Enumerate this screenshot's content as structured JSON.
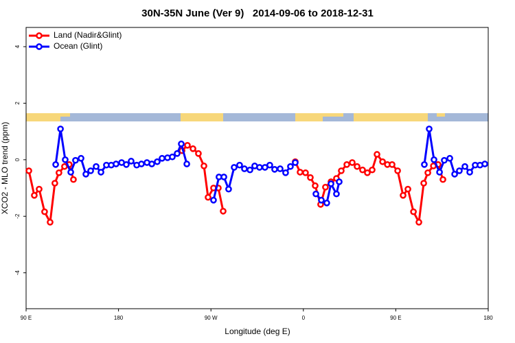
{
  "chart_data": {
    "type": "line",
    "title": "30N-35N June (Ver 9)   2014-09-06 to 2018-12-31",
    "x_label": "Longitude (deg E)",
    "y_label": "XCO2 - MLO trend (ppm)",
    "xlim": [
      90,
      540
    ],
    "ylim": [
      -5.27,
      4.68
    ],
    "xticks": [
      {
        "value": 90,
        "label": "90 E"
      },
      {
        "value": 180,
        "label": "180"
      },
      {
        "value": 270,
        "label": "90 W"
      },
      {
        "value": 360,
        "label": "0"
      },
      {
        "value": 450,
        "label": "90 E"
      },
      {
        "value": 540,
        "label": "180"
      }
    ],
    "yticks": [
      -4,
      -2,
      0,
      2,
      4
    ],
    "legend": "top-left",
    "series": [
      {
        "name": "Land (Nadir&Glint)",
        "color": "#ff0000",
        "x": [
          92.7,
          98,
          102.7,
          108,
          113.4,
          118,
          122,
          127.4,
          132,
          136.1,
          null,
          241.8,
          247.1,
          252.5,
          257.8,
          263.2,
          267.2,
          272.5,
          277.2,
          281.9,
          null,
          352.1,
          356.8,
          362.1,
          366.8,
          371.5,
          376.8,
          381.5,
          386.9,
          392.2,
          396.9,
          402.3,
          407.6,
          412.3,
          417.6,
          422.3,
          427,
          431.7,
          437.1,
          441.8,
          446.4,
          451.8,
          457.1,
          461.8,
          467.2,
          472.5,
          477.2,
          481.2,
          486.6,
          491.2,
          495.9
        ],
        "values": [
          -0.39,
          -1.26,
          -1.04,
          -1.84,
          -2.21,
          -0.83,
          -0.46,
          -0.24,
          -0.17,
          -0.7,
          null,
          0.32,
          0.51,
          0.39,
          0.22,
          -0.22,
          -1.33,
          -1.0,
          -1.0,
          -1.82,
          null,
          -0.07,
          -0.44,
          -0.46,
          -0.63,
          -0.92,
          -1.58,
          -0.97,
          -0.78,
          -0.66,
          -0.39,
          -0.17,
          -0.1,
          -0.24,
          -0.36,
          -0.46,
          -0.36,
          0.19,
          -0.07,
          -0.17,
          -0.17,
          -0.39,
          -1.26,
          -1.04,
          -1.84,
          -2.21,
          -0.83,
          -0.46,
          -0.22,
          -0.17,
          -0.7
        ]
      },
      {
        "name": "Ocean (Glint)",
        "color": "#0000ff",
        "x": [
          118.8,
          123.5,
          128.1,
          133.5,
          138.1,
          143.5,
          148.2,
          152.9,
          158.2,
          162.9,
          168.2,
          172.9,
          177.6,
          183,
          187.6,
          192.3,
          197.7,
          202.3,
          207.7,
          212.4,
          217.7,
          222.4,
          227.7,
          232.4,
          237.1,
          241.1,
          246.5,
          null,
          272.5,
          277.8,
          282.6,
          287.2,
          292.6,
          297.9,
          302.6,
          308,
          312.6,
          317.3,
          322.6,
          327.3,
          332,
          337.4,
          342.7,
          347.4,
          352.1,
          null,
          372.2,
          377.5,
          382.8,
          386.9,
          392.2,
          394.9,
          null,
          477.8,
          482.5,
          487.2,
          492.6,
          497.2,
          502.6,
          507.3,
          511.9,
          517.3,
          522,
          527.3,
          532,
          536.7
        ],
        "values": [
          -0.17,
          1.09,
          0.0,
          -0.44,
          -0.02,
          0.05,
          -0.51,
          -0.39,
          -0.24,
          -0.44,
          -0.19,
          -0.19,
          -0.15,
          -0.1,
          -0.17,
          -0.05,
          -0.19,
          -0.15,
          -0.1,
          -0.15,
          -0.07,
          0.05,
          0.07,
          0.1,
          0.22,
          0.56,
          -0.15,
          null,
          -1.43,
          -0.61,
          -0.61,
          -1.04,
          -0.27,
          -0.19,
          -0.32,
          -0.36,
          -0.22,
          -0.27,
          -0.27,
          -0.19,
          -0.34,
          -0.32,
          -0.46,
          -0.24,
          -0.1,
          null,
          -1.21,
          -1.43,
          -1.53,
          -0.85,
          -1.21,
          -0.78,
          null,
          -0.17,
          1.09,
          0.0,
          -0.44,
          -0.02,
          0.05,
          -0.51,
          -0.39,
          -0.24,
          -0.44,
          -0.19,
          -0.19,
          -0.15
        ]
      }
    ]
  }
}
